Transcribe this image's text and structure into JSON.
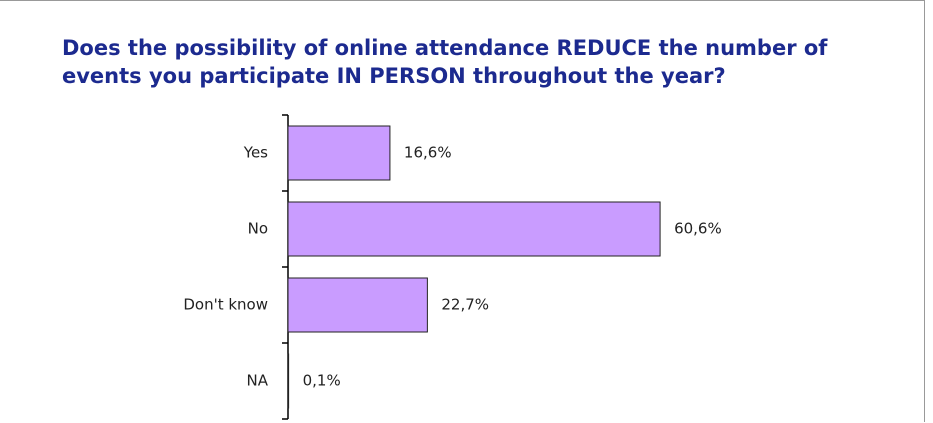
{
  "chart_data": {
    "type": "bar",
    "orientation": "horizontal",
    "title": "Does the possibility of online attendance REDUCE the number of events you participate IN PERSON throughout the year?",
    "categories": [
      "Yes",
      "No",
      "Don't know",
      "NA"
    ],
    "values": [
      16.6,
      60.6,
      22.7,
      0.1
    ],
    "value_labels": [
      "16,6%",
      "60,6%",
      "22,7%",
      "0,1%"
    ],
    "color": "#c99cff"
  }
}
